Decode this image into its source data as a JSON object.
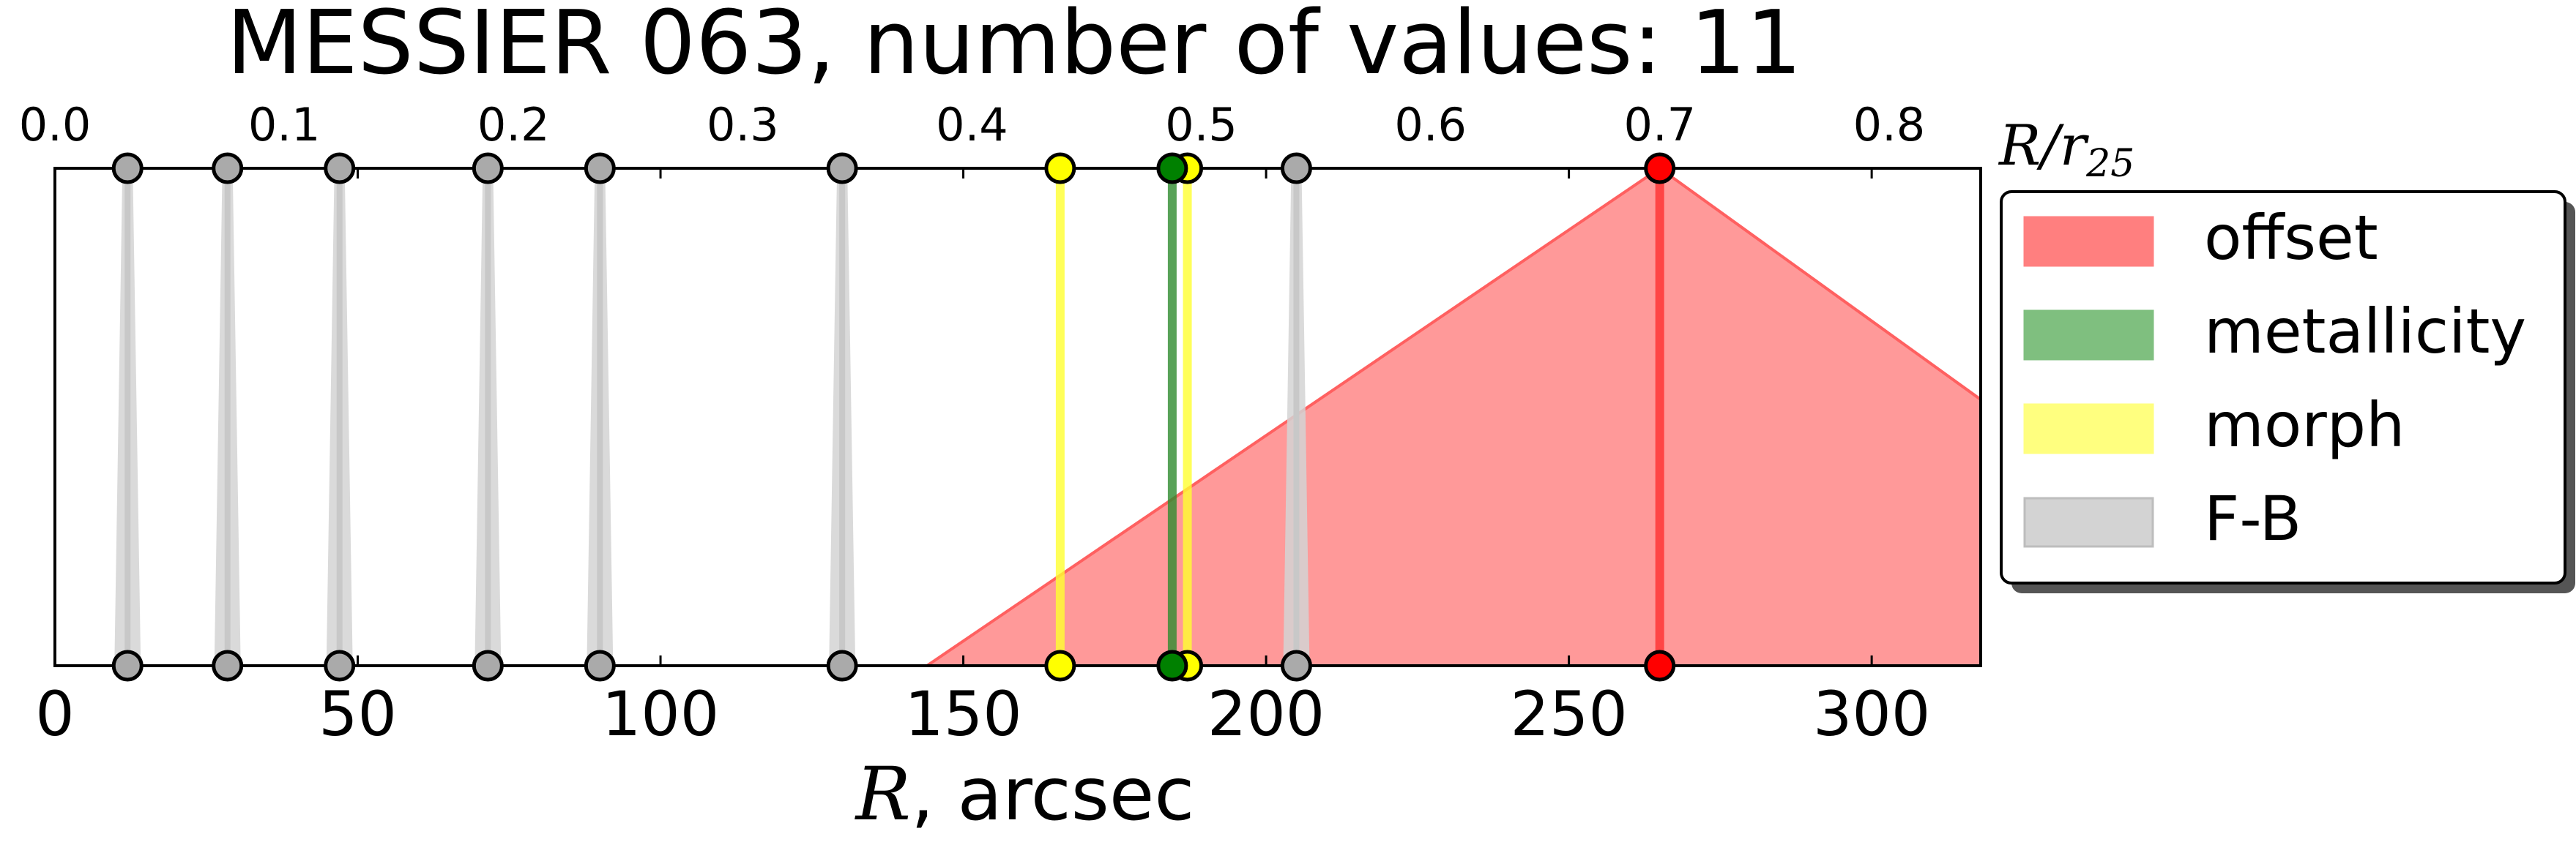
{
  "chart_data": {
    "type": "scatter",
    "title": "MESSIER 063, number of values: 11",
    "xlabel_var": "R",
    "xlabel_unit": ", arcsec",
    "top_xlabel_var": "R/r",
    "top_xlabel_sub": "25",
    "xlim": [
      0,
      318
    ],
    "ylim": [
      0,
      1
    ],
    "x_ticks": [
      0,
      50,
      100,
      150,
      200,
      250,
      300
    ],
    "x_tick_labels": [
      "0",
      "50",
      "100",
      "150",
      "200",
      "250",
      "300"
    ],
    "top_ticks": [
      0.0,
      0.1,
      0.2,
      0.3,
      0.4,
      0.5,
      0.6,
      0.7,
      0.8
    ],
    "top_tick_labels": [
      "0.0",
      "0.1",
      "0.2",
      "0.3",
      "0.4",
      "0.5",
      "0.6",
      "0.7",
      "0.8"
    ],
    "r25_arcsec": 378.6,
    "legend": {
      "placement": "right-outside",
      "entries": [
        {
          "label": "offset",
          "color": "#ff7f7f"
        },
        {
          "label": "metallicity",
          "color": "#7fbf7f"
        },
        {
          "label": "morph",
          "color": "#ffff7f"
        },
        {
          "label": "F-B",
          "color": "#d3d3d3"
        }
      ]
    },
    "series": [
      {
        "name": "F-B",
        "color": "#aaaaaa",
        "x": [
          12,
          28.5,
          47,
          71.5,
          90,
          130,
          205
        ]
      },
      {
        "name": "morph",
        "color": "#ffff00",
        "x": [
          166,
          187
        ]
      },
      {
        "name": "metallicity",
        "color": "#008000",
        "x": [
          184.5
        ]
      },
      {
        "name": "offset",
        "color": "#ff0000",
        "x": [
          265
        ],
        "peak_range": [
          144,
          379
        ]
      }
    ]
  }
}
